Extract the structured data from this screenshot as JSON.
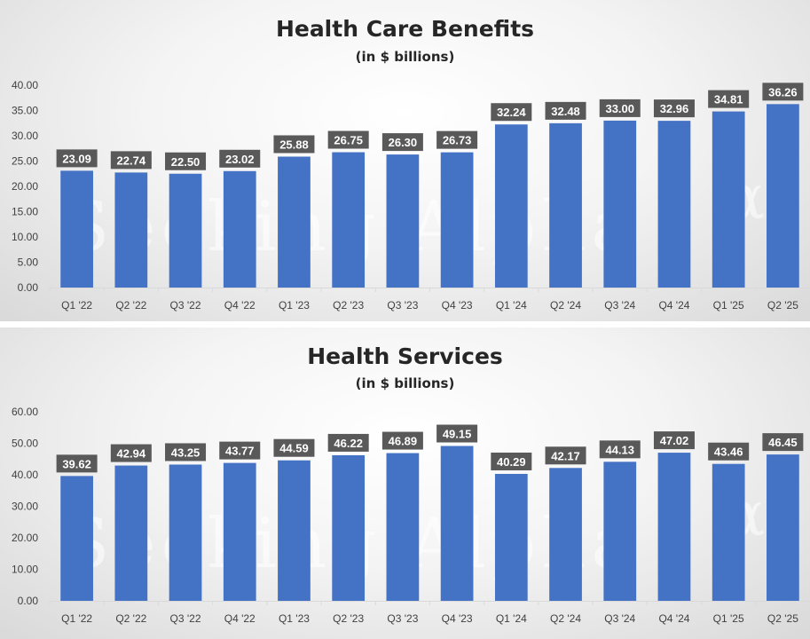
{
  "watermark": "Seeking Alpha",
  "watermark_mark": "α",
  "colors": {
    "bar": "#4472c4",
    "label_bg": "#595959",
    "label_text": "#ffffff",
    "axis_text": "#404040",
    "grid": "#d9d9d9"
  },
  "chart_data": [
    {
      "type": "bar",
      "title": "Health Care Benefits",
      "subtitle": "(in $ billions)",
      "xlabel": "",
      "ylabel": "",
      "ylim": [
        0,
        40
      ],
      "y_ticks": [
        "0.00",
        "5.00",
        "10.00",
        "15.00",
        "20.00",
        "25.00",
        "30.00",
        "35.00",
        "40.00"
      ],
      "categories": [
        "Q1 '22",
        "Q2 '22",
        "Q3 '22",
        "Q4 '22",
        "Q1 '23",
        "Q2 '23",
        "Q3 '23",
        "Q4 '23",
        "Q1 '24",
        "Q2 '24",
        "Q3 '24",
        "Q4 '24",
        "Q1 '25",
        "Q2 '25"
      ],
      "values": [
        23.09,
        22.74,
        22.5,
        23.02,
        25.88,
        26.75,
        26.3,
        26.73,
        32.24,
        32.48,
        33.0,
        32.96,
        34.81,
        36.26
      ],
      "value_labels": [
        "23.09",
        "22.74",
        "22.50",
        "23.02",
        "25.88",
        "26.75",
        "26.30",
        "26.73",
        "32.24",
        "32.48",
        "33.00",
        "32.96",
        "34.81",
        "36.26"
      ]
    },
    {
      "type": "bar",
      "title": "Health Services",
      "subtitle": "(in $ billions)",
      "xlabel": "",
      "ylabel": "",
      "ylim": [
        0,
        60
      ],
      "y_ticks": [
        "0.00",
        "10.00",
        "20.00",
        "30.00",
        "40.00",
        "50.00",
        "60.00"
      ],
      "categories": [
        "Q1 '22",
        "Q2 '22",
        "Q3 '22",
        "Q4 '22",
        "Q1 '23",
        "Q2 '23",
        "Q3 '23",
        "Q4 '23",
        "Q1 '24",
        "Q2 '24",
        "Q3 '24",
        "Q4 '24",
        "Q1 '25",
        "Q2 '25"
      ],
      "values": [
        39.62,
        42.94,
        43.25,
        43.77,
        44.59,
        46.22,
        46.89,
        49.15,
        40.29,
        42.17,
        44.13,
        47.02,
        43.46,
        46.45
      ],
      "value_labels": [
        "39.62",
        "42.94",
        "43.25",
        "43.77",
        "44.59",
        "46.22",
        "46.89",
        "49.15",
        "40.29",
        "42.17",
        "44.13",
        "47.02",
        "43.46",
        "46.45"
      ]
    }
  ]
}
